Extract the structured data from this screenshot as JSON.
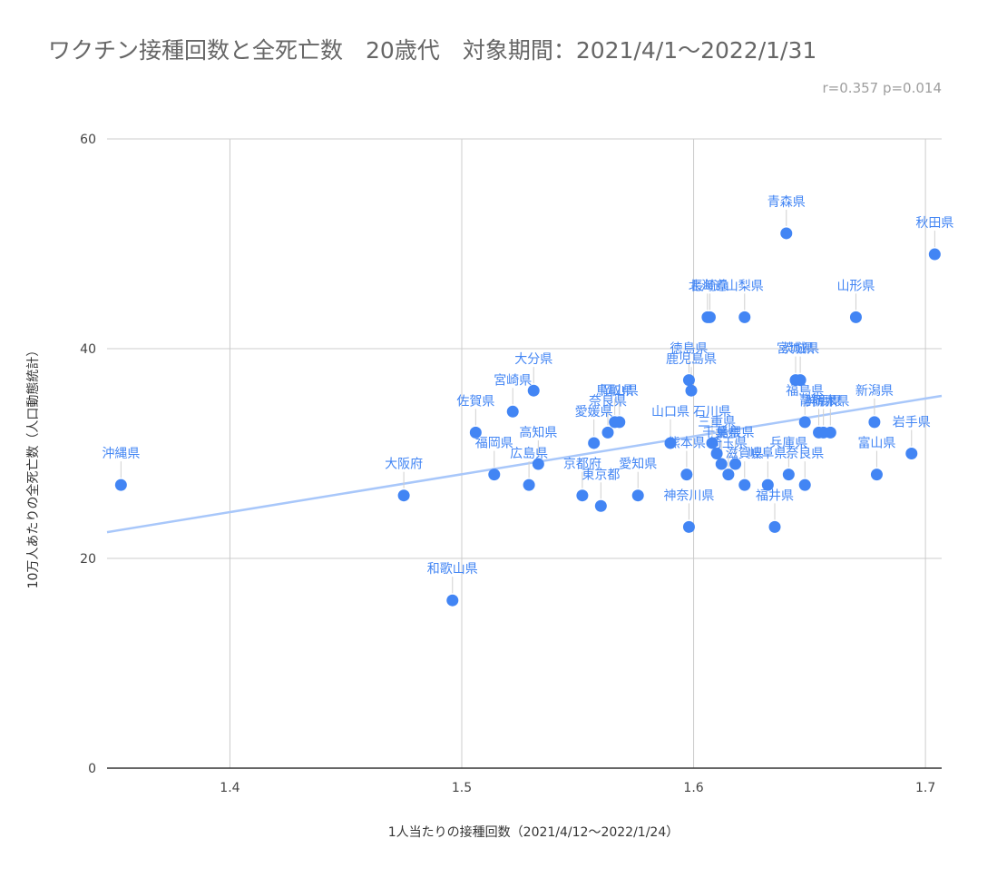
{
  "chart_data": {
    "type": "scatter",
    "title": "ワクチン接種回数と全死亡数　20歳代　対象期間：2021/4/1～2022/1/31",
    "subtitle": "r=0.357 p=0.014",
    "xlabel": "1人当たりの接種回数（2021/4/12～2022/1/24）",
    "ylabel": "10万人あたりの全死亡数（人口動態統計）",
    "xlim": [
      1.347,
      1.707
    ],
    "ylim": [
      0,
      60
    ],
    "xticks": [
      "1.4",
      "1.5",
      "1.6",
      "1.7"
    ],
    "yticks": [
      "0",
      "20",
      "40",
      "60"
    ],
    "grid": true,
    "trendline": {
      "type": "linear",
      "x": [
        1.347,
        1.707
      ],
      "y": [
        22.5,
        35.5
      ]
    },
    "colors": {
      "point": "#4285f4",
      "label": "#4285f4",
      "trendline": "#a8c7fa",
      "grid": "#cccccc",
      "axis": "#333333"
    },
    "points": [
      {
        "label": "沖縄県",
        "x": 1.353,
        "y": 27
      },
      {
        "label": "大阪府",
        "x": 1.475,
        "y": 26
      },
      {
        "label": "和歌山県",
        "x": 1.496,
        "y": 16
      },
      {
        "label": "佐賀県",
        "x": 1.506,
        "y": 32
      },
      {
        "label": "福岡県",
        "x": 1.514,
        "y": 28
      },
      {
        "label": "宮崎県",
        "x": 1.522,
        "y": 34
      },
      {
        "label": "広島県",
        "x": 1.529,
        "y": 27
      },
      {
        "label": "大分県",
        "x": 1.531,
        "y": 36
      },
      {
        "label": "高知県",
        "x": 1.533,
        "y": 29
      },
      {
        "label": "京都府",
        "x": 1.552,
        "y": 26
      },
      {
        "label": "愛媛県",
        "x": 1.557,
        "y": 31
      },
      {
        "label": "東京都",
        "x": 1.56,
        "y": 25
      },
      {
        "label": "奈良県",
        "x": 1.563,
        "y": 32
      },
      {
        "label": "鳥取県",
        "x": 1.566,
        "y": 33
      },
      {
        "label": "岡山県",
        "x": 1.568,
        "y": 33
      },
      {
        "label": "愛知県",
        "x": 1.576,
        "y": 26
      },
      {
        "label": "山口県",
        "x": 1.59,
        "y": 31
      },
      {
        "label": "熊本県",
        "x": 1.597,
        "y": 28
      },
      {
        "label": "徳島県",
        "x": 1.598,
        "y": 37
      },
      {
        "label": "鹿児島県",
        "x": 1.599,
        "y": 36
      },
      {
        "label": "神奈川県",
        "x": 1.598,
        "y": 23
      },
      {
        "label": "北海道",
        "x": 1.606,
        "y": 43
      },
      {
        "label": "長崎県",
        "x": 1.607,
        "y": 43
      },
      {
        "label": "石川県",
        "x": 1.608,
        "y": 31
      },
      {
        "label": "三重県",
        "x": 1.61,
        "y": 30
      },
      {
        "label": "千葉県",
        "x": 1.612,
        "y": 29
      },
      {
        "label": "埼玉県",
        "x": 1.615,
        "y": 28
      },
      {
        "label": "島根県",
        "x": 1.618,
        "y": 29
      },
      {
        "label": "山梨県",
        "x": 1.622,
        "y": 43
      },
      {
        "label": "滋賀県",
        "x": 1.622,
        "y": 27
      },
      {
        "label": "岐阜県",
        "x": 1.632,
        "y": 27
      },
      {
        "label": "福井県",
        "x": 1.635,
        "y": 23
      },
      {
        "label": "青森県",
        "x": 1.64,
        "y": 51
      },
      {
        "label": "兵庫県",
        "x": 1.641,
        "y": 28
      },
      {
        "label": "宮城県",
        "x": 1.644,
        "y": 37
      },
      {
        "label": "茨城県",
        "x": 1.646,
        "y": 37
      },
      {
        "label": "福島県",
        "x": 1.648,
        "y": 33
      },
      {
        "label": "奈良県",
        "x": 1.648,
        "y": 27
      },
      {
        "label": "静岡県",
        "x": 1.654,
        "y": 32
      },
      {
        "label": "群馬県",
        "x": 1.656,
        "y": 32
      },
      {
        "label": "栃木県",
        "x": 1.659,
        "y": 32
      },
      {
        "label": "山形県",
        "x": 1.67,
        "y": 43
      },
      {
        "label": "新潟県",
        "x": 1.678,
        "y": 33
      },
      {
        "label": "富山県",
        "x": 1.679,
        "y": 28
      },
      {
        "label": "岩手県",
        "x": 1.694,
        "y": 30
      },
      {
        "label": "秋田県",
        "x": 1.704,
        "y": 49
      }
    ]
  }
}
